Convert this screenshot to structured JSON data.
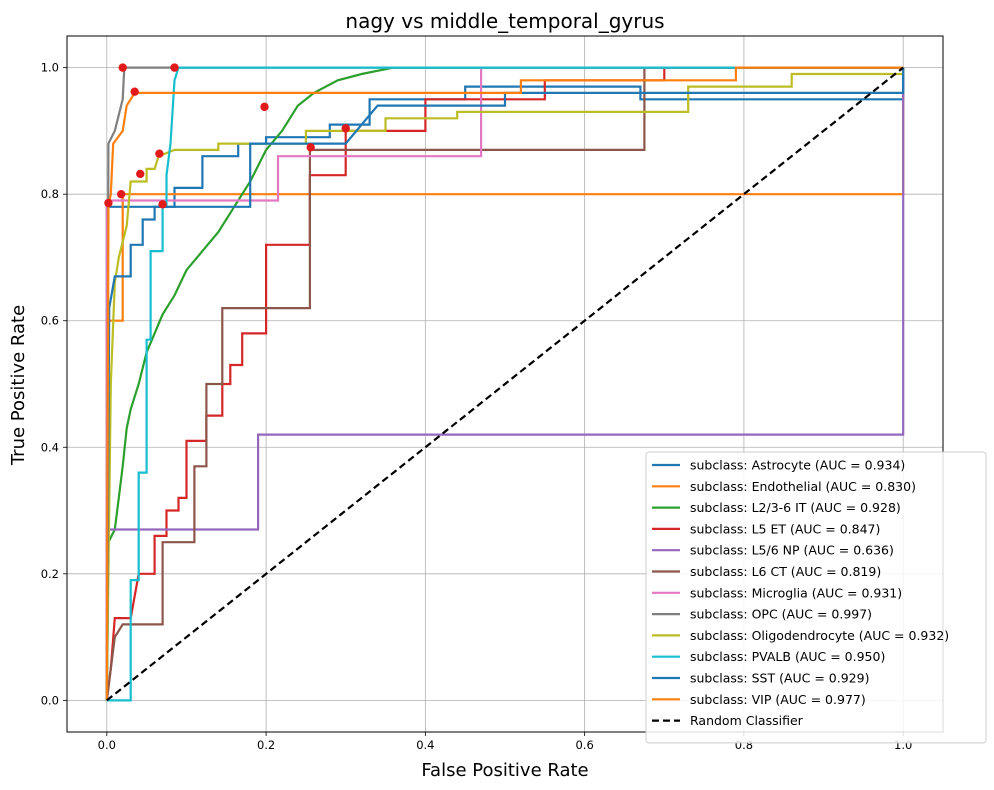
{
  "chart_data": {
    "type": "line",
    "title": "nagy vs middle_temporal_gyrus",
    "xlabel": "False Positive Rate",
    "ylabel": "True Positive Rate",
    "xlim": [
      -0.05,
      1.05
    ],
    "ylim": [
      -0.05,
      1.05
    ],
    "xticks": [
      0.0,
      0.2,
      0.4,
      0.6,
      0.8,
      1.0
    ],
    "yticks": [
      0.0,
      0.2,
      0.4,
      0.6,
      0.8,
      1.0
    ],
    "xtick_labels": [
      "0.0",
      "0.2",
      "0.4",
      "0.6",
      "0.8",
      "1.0"
    ],
    "ytick_labels": [
      "0.0",
      "0.2",
      "0.4",
      "0.6",
      "0.8",
      "1.0"
    ],
    "grid": true,
    "legend_position": "lower-right",
    "series": [
      {
        "name": "subclass: Astrocyte (AUC = 0.934)",
        "color": "#1f77b4",
        "points": [
          [
            0,
            0
          ],
          [
            0,
            0.78
          ],
          [
            0.065,
            0.78
          ],
          [
            0.065,
            0.78
          ],
          [
            0.085,
            0.78
          ],
          [
            0.085,
            0.81
          ],
          [
            0.12,
            0.81
          ],
          [
            0.12,
            0.86
          ],
          [
            0.165,
            0.86
          ],
          [
            0.165,
            0.88
          ],
          [
            0.2,
            0.88
          ],
          [
            0.2,
            0.89
          ],
          [
            0.28,
            0.89
          ],
          [
            0.28,
            0.91
          ],
          [
            0.33,
            0.91
          ],
          [
            0.33,
            0.95
          ],
          [
            0.45,
            0.95
          ],
          [
            0.45,
            0.97
          ],
          [
            0.52,
            0.97
          ],
          [
            0.52,
            0.97
          ],
          [
            0.67,
            0.97
          ],
          [
            0.67,
            0.95
          ],
          [
            1,
            0.95
          ],
          [
            1,
            1
          ]
        ]
      },
      {
        "name": "subclass: Endothelial (AUC = 0.830)",
        "color": "#ff7f0e",
        "points": [
          [
            0,
            0
          ],
          [
            0,
            0.6
          ],
          [
            0.02,
            0.6
          ],
          [
            0.02,
            0.8
          ],
          [
            1,
            0.8
          ],
          [
            1,
            1
          ]
        ]
      },
      {
        "name": "subclass: L2/3-6 IT (AUC = 0.928)",
        "color": "#2ca02c",
        "points": [
          [
            0,
            0
          ],
          [
            0.002,
            0.25
          ],
          [
            0.01,
            0.27
          ],
          [
            0.015,
            0.32
          ],
          [
            0.02,
            0.37
          ],
          [
            0.025,
            0.43
          ],
          [
            0.03,
            0.46
          ],
          [
            0.04,
            0.5
          ],
          [
            0.05,
            0.55
          ],
          [
            0.06,
            0.58
          ],
          [
            0.07,
            0.61
          ],
          [
            0.085,
            0.64
          ],
          [
            0.1,
            0.68
          ],
          [
            0.12,
            0.71
          ],
          [
            0.14,
            0.74
          ],
          [
            0.16,
            0.78
          ],
          [
            0.18,
            0.82
          ],
          [
            0.2,
            0.87
          ],
          [
            0.22,
            0.9
          ],
          [
            0.24,
            0.94
          ],
          [
            0.26,
            0.96
          ],
          [
            0.29,
            0.98
          ],
          [
            0.32,
            0.99
          ],
          [
            0.36,
            1.0
          ],
          [
            1,
            1
          ]
        ]
      },
      {
        "name": "subclass: L5 ET (AUC = 0.847)",
        "color": "#d62728",
        "points": [
          [
            0,
            0
          ],
          [
            0.005,
            0.05
          ],
          [
            0.01,
            0.13
          ],
          [
            0.03,
            0.13
          ],
          [
            0.04,
            0.2
          ],
          [
            0.06,
            0.2
          ],
          [
            0.06,
            0.26
          ],
          [
            0.075,
            0.26
          ],
          [
            0.075,
            0.3
          ],
          [
            0.09,
            0.3
          ],
          [
            0.09,
            0.32
          ],
          [
            0.1,
            0.32
          ],
          [
            0.1,
            0.41
          ],
          [
            0.125,
            0.41
          ],
          [
            0.125,
            0.45
          ],
          [
            0.145,
            0.45
          ],
          [
            0.145,
            0.5
          ],
          [
            0.155,
            0.5
          ],
          [
            0.155,
            0.53
          ],
          [
            0.17,
            0.53
          ],
          [
            0.17,
            0.58
          ],
          [
            0.2,
            0.58
          ],
          [
            0.2,
            0.72
          ],
          [
            0.255,
            0.72
          ],
          [
            0.255,
            0.83
          ],
          [
            0.3,
            0.83
          ],
          [
            0.3,
            0.9
          ],
          [
            0.4,
            0.9
          ],
          [
            0.4,
            0.95
          ],
          [
            0.55,
            0.95
          ],
          [
            0.55,
            0.98
          ],
          [
            0.7,
            0.98
          ],
          [
            0.7,
            1.0
          ],
          [
            1,
            1
          ]
        ]
      },
      {
        "name": "subclass: L5/6 NP (AUC = 0.636)",
        "color": "#9467bd",
        "points": [
          [
            0,
            0
          ],
          [
            0,
            0.27
          ],
          [
            0.19,
            0.27
          ],
          [
            0.19,
            0.42
          ],
          [
            1,
            0.42
          ],
          [
            1,
            1
          ]
        ]
      },
      {
        "name": "subclass: L6 CT (AUC = 0.819)",
        "color": "#8c564b",
        "points": [
          [
            0,
            0
          ],
          [
            0.005,
            0.05
          ],
          [
            0.01,
            0.1
          ],
          [
            0.02,
            0.12
          ],
          [
            0.07,
            0.12
          ],
          [
            0.07,
            0.25
          ],
          [
            0.11,
            0.25
          ],
          [
            0.11,
            0.37
          ],
          [
            0.125,
            0.37
          ],
          [
            0.125,
            0.5
          ],
          [
            0.145,
            0.5
          ],
          [
            0.145,
            0.62
          ],
          [
            0.255,
            0.62
          ],
          [
            0.255,
            0.87
          ],
          [
            0.675,
            0.87
          ],
          [
            0.675,
            1.0
          ],
          [
            1,
            1
          ]
        ]
      },
      {
        "name": "subclass: Microglia (AUC = 0.931)",
        "color": "#e377c2",
        "points": [
          [
            0,
            0
          ],
          [
            0,
            0.79
          ],
          [
            0.215,
            0.79
          ],
          [
            0.215,
            0.86
          ],
          [
            0.47,
            0.86
          ],
          [
            0.47,
            1.0
          ],
          [
            1,
            1
          ]
        ]
      },
      {
        "name": "subclass: OPC (AUC = 0.997)",
        "color": "#7f7f7f",
        "points": [
          [
            0,
            0
          ],
          [
            0.002,
            0.88
          ],
          [
            0.01,
            0.9
          ],
          [
            0.02,
            0.95
          ],
          [
            0.022,
            1.0
          ],
          [
            1,
            1
          ]
        ]
      },
      {
        "name": "subclass: Oligodendrocyte (AUC = 0.932)",
        "color": "#bcbd22",
        "points": [
          [
            0,
            0
          ],
          [
            0.005,
            0.5
          ],
          [
            0.01,
            0.66
          ],
          [
            0.015,
            0.7
          ],
          [
            0.025,
            0.75
          ],
          [
            0.03,
            0.82
          ],
          [
            0.05,
            0.82
          ],
          [
            0.05,
            0.84
          ],
          [
            0.06,
            0.84
          ],
          [
            0.065,
            0.86
          ],
          [
            0.085,
            0.87
          ],
          [
            0.14,
            0.87
          ],
          [
            0.14,
            0.88
          ],
          [
            0.25,
            0.88
          ],
          [
            0.25,
            0.9
          ],
          [
            0.35,
            0.9
          ],
          [
            0.35,
            0.92
          ],
          [
            0.44,
            0.92
          ],
          [
            0.44,
            0.93
          ],
          [
            0.73,
            0.93
          ],
          [
            0.73,
            0.97
          ],
          [
            0.86,
            0.97
          ],
          [
            0.86,
            0.99
          ],
          [
            1,
            0.99
          ],
          [
            1,
            1
          ]
        ]
      },
      {
        "name": "subclass: PVALB (AUC = 0.950)",
        "color": "#17becf",
        "points": [
          [
            0,
            0
          ],
          [
            0.03,
            0
          ],
          [
            0.03,
            0.19
          ],
          [
            0.04,
            0.19
          ],
          [
            0.04,
            0.36
          ],
          [
            0.05,
            0.36
          ],
          [
            0.05,
            0.57
          ],
          [
            0.055,
            0.57
          ],
          [
            0.055,
            0.71
          ],
          [
            0.07,
            0.71
          ],
          [
            0.07,
            0.78
          ],
          [
            0.075,
            0.78
          ],
          [
            0.075,
            0.83
          ],
          [
            0.08,
            0.88
          ],
          [
            0.085,
            0.98
          ],
          [
            0.09,
            1.0
          ],
          [
            0.79,
            1.0
          ],
          [
            1,
            1
          ]
        ]
      },
      {
        "name": "subclass: SST (AUC = 0.929)",
        "color": "#1f77b4",
        "points": [
          [
            0,
            0
          ],
          [
            0.003,
            0.62
          ],
          [
            0.01,
            0.67
          ],
          [
            0.03,
            0.67
          ],
          [
            0.03,
            0.72
          ],
          [
            0.045,
            0.72
          ],
          [
            0.045,
            0.76
          ],
          [
            0.06,
            0.76
          ],
          [
            0.06,
            0.78
          ],
          [
            0.18,
            0.78
          ],
          [
            0.18,
            0.88
          ],
          [
            0.3,
            0.88
          ],
          [
            0.34,
            0.94
          ],
          [
            0.5,
            0.94
          ],
          [
            0.5,
            0.96
          ],
          [
            1,
            0.96
          ],
          [
            1,
            1
          ]
        ]
      },
      {
        "name": "subclass: VIP (AUC = 0.977)",
        "color": "#ff7f0e",
        "points": [
          [
            0,
            0
          ],
          [
            0.002,
            0.78
          ],
          [
            0.005,
            0.8
          ],
          [
            0.008,
            0.88
          ],
          [
            0.02,
            0.9
          ],
          [
            0.025,
            0.94
          ],
          [
            0.035,
            0.96
          ],
          [
            0.52,
            0.96
          ],
          [
            0.52,
            0.98
          ],
          [
            0.79,
            0.98
          ],
          [
            0.79,
            1.0
          ],
          [
            1,
            1
          ]
        ]
      },
      {
        "name": "Random Classifier",
        "color": "#000000",
        "dashed": true,
        "points": [
          [
            0,
            0
          ],
          [
            1,
            1
          ]
        ]
      }
    ],
    "markers": {
      "color": "#e31a1c",
      "points": [
        [
          0.002,
          0.786
        ],
        [
          0.018,
          0.8
        ],
        [
          0.02,
          1.0
        ],
        [
          0.035,
          0.962
        ],
        [
          0.042,
          0.832
        ],
        [
          0.066,
          0.864
        ],
        [
          0.07,
          0.784
        ],
        [
          0.085,
          1.0
        ],
        [
          0.198,
          0.938
        ],
        [
          0.256,
          0.874
        ],
        [
          0.3,
          0.904
        ]
      ]
    }
  }
}
